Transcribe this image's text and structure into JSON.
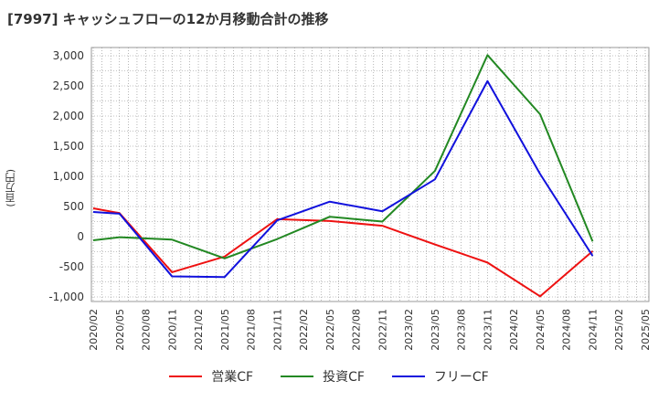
{
  "chart_data": {
    "type": "line",
    "title": "[7997]  キャッシュフローの12か月移動合計の推移",
    "ylabel": "(百万円)",
    "xlabel": "",
    "ylim": [
      -1000,
      3000
    ],
    "yticks": [
      3000,
      2500,
      2000,
      1500,
      1000,
      500,
      0,
      -500,
      -1000
    ],
    "ytick_labels": [
      "3,000",
      "2,500",
      "2,000",
      "1,500",
      "1,000",
      "500",
      "0",
      "-500",
      "-1,000"
    ],
    "categories": [
      "2020/02",
      "2020/05",
      "2020/08",
      "2020/11",
      "2021/02",
      "2021/05",
      "2021/08",
      "2021/11",
      "2022/02",
      "2022/05",
      "2022/08",
      "2022/11",
      "2023/02",
      "2023/05",
      "2023/08",
      "2023/11",
      "2024/02",
      "2024/05",
      "2024/08",
      "2024/11",
      "2025/02",
      "2025/05"
    ],
    "grid": true,
    "legend_position": "bottom",
    "series": [
      {
        "name": "営業CF",
        "color": "#ee1111",
        "values": [
          470,
          390,
          null,
          -590,
          null,
          -330,
          null,
          290,
          null,
          260,
          null,
          180,
          null,
          -130,
          null,
          -430,
          null,
          -990,
          null,
          -240,
          null,
          null
        ]
      },
      {
        "name": "投資CF",
        "color": "#228822",
        "values": [
          -60,
          -10,
          null,
          -50,
          null,
          -360,
          null,
          -40,
          null,
          330,
          null,
          250,
          null,
          1090,
          null,
          3010,
          null,
          2030,
          null,
          -80,
          null,
          null
        ]
      },
      {
        "name": "フリーCF",
        "color": "#1111dd",
        "values": [
          410,
          380,
          null,
          -660,
          null,
          -670,
          null,
          270,
          null,
          580,
          null,
          420,
          null,
          950,
          null,
          2580,
          null,
          1040,
          null,
          -320,
          null,
          null
        ]
      }
    ]
  }
}
